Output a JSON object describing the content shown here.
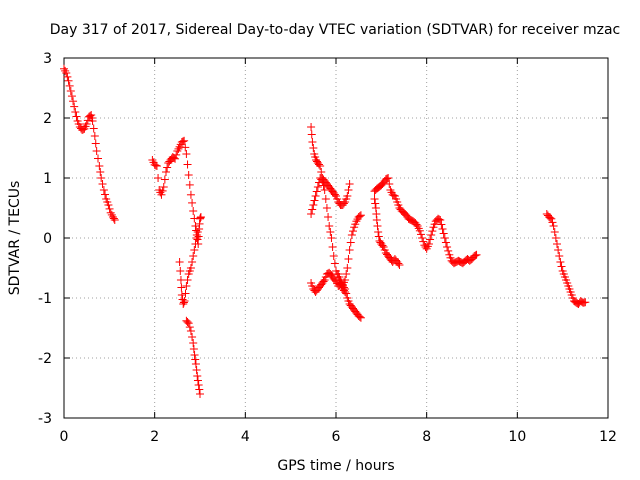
{
  "chart_data": {
    "type": "scatter",
    "title": "Day 317 of 2017, Sidereal Day-to-day VTEC variation (SDTVAR) for receiver mzac",
    "xlabel": "GPS time / hours",
    "ylabel": "SDTVAR / TECUs",
    "xlim": [
      0,
      12
    ],
    "ylim": [
      -3,
      3
    ],
    "xticks": [
      0,
      2,
      4,
      6,
      8,
      10,
      12
    ],
    "yticks": [
      -3,
      -2,
      -1,
      0,
      1,
      2,
      3
    ],
    "xtick_labels": [
      "0",
      "2",
      "4",
      "6",
      "8",
      "10",
      "12"
    ],
    "ytick_labels": [
      "-3",
      "-2",
      "-1",
      "0",
      "1",
      "2",
      "3"
    ],
    "grid": true,
    "marker": "plus",
    "series_color": "#ff0000",
    "segments": [
      [
        [
          0.0,
          2.82
        ],
        [
          0.05,
          2.75
        ],
        [
          0.1,
          2.62
        ],
        [
          0.15,
          2.45
        ],
        [
          0.2,
          2.28
        ],
        [
          0.25,
          2.1
        ],
        [
          0.3,
          1.95
        ],
        [
          0.35,
          1.85
        ],
        [
          0.4,
          1.8
        ],
        [
          0.45,
          1.82
        ],
        [
          0.5,
          1.9
        ],
        [
          0.55,
          2.02
        ],
        [
          0.6,
          2.05
        ],
        [
          0.63,
          1.95
        ],
        [
          0.68,
          1.7
        ],
        [
          0.72,
          1.45
        ],
        [
          0.78,
          1.2
        ],
        [
          0.82,
          1.0
        ],
        [
          0.88,
          0.8
        ],
        [
          0.93,
          0.65
        ],
        [
          0.98,
          0.55
        ],
        [
          1.03,
          0.42
        ],
        [
          1.08,
          0.35
        ],
        [
          1.12,
          0.3
        ]
      ],
      [
        [
          1.95,
          1.3
        ],
        [
          2.0,
          1.22
        ],
        [
          2.05,
          1.2
        ],
        [
          2.1,
          0.8
        ],
        [
          2.15,
          0.72
        ],
        [
          2.2,
          0.85
        ],
        [
          2.25,
          1.1
        ],
        [
          2.3,
          1.25
        ],
        [
          2.35,
          1.3
        ],
        [
          2.4,
          1.35
        ],
        [
          2.45,
          1.32
        ],
        [
          2.5,
          1.45
        ],
        [
          2.55,
          1.52
        ],
        [
          2.6,
          1.6
        ],
        [
          2.65,
          1.62
        ],
        [
          2.7,
          1.4
        ],
        [
          2.75,
          1.05
        ],
        [
          2.8,
          0.72
        ],
        [
          2.85,
          0.45
        ],
        [
          2.9,
          0.2
        ],
        [
          2.93,
          0.05
        ],
        [
          2.96,
          -0.1
        ],
        [
          2.98,
          0.15
        ],
        [
          3.0,
          0.32
        ],
        [
          3.02,
          0.35
        ]
      ],
      [
        [
          2.55,
          -0.4
        ],
        [
          2.58,
          -0.7
        ],
        [
          2.6,
          -0.95
        ],
        [
          2.63,
          -1.1
        ],
        [
          2.66,
          -1.05
        ],
        [
          2.7,
          -0.8
        ],
        [
          2.75,
          -0.6
        ],
        [
          2.8,
          -0.5
        ],
        [
          2.85,
          -0.3
        ],
        [
          2.9,
          -0.1
        ],
        [
          2.95,
          0.1
        ]
      ],
      [
        [
          2.7,
          -1.38
        ],
        [
          2.75,
          -1.42
        ],
        [
          2.8,
          -1.55
        ],
        [
          2.85,
          -1.75
        ],
        [
          2.88,
          -1.95
        ],
        [
          2.91,
          -2.1
        ],
        [
          2.94,
          -2.3
        ],
        [
          2.97,
          -2.45
        ],
        [
          3.0,
          -2.6
        ]
      ],
      [
        [
          5.45,
          1.85
        ],
        [
          5.48,
          1.6
        ],
        [
          5.52,
          1.4
        ],
        [
          5.56,
          1.3
        ],
        [
          5.6,
          1.25
        ],
        [
          5.65,
          1.2
        ],
        [
          5.7,
          1.0
        ],
        [
          5.75,
          0.95
        ],
        [
          5.8,
          0.9
        ],
        [
          5.85,
          0.85
        ],
        [
          5.9,
          0.8
        ],
        [
          5.95,
          0.75
        ],
        [
          6.0,
          0.7
        ],
        [
          6.05,
          0.6
        ],
        [
          6.1,
          0.55
        ],
        [
          6.15,
          0.55
        ],
        [
          6.2,
          0.6
        ],
        [
          6.25,
          0.7
        ],
        [
          6.3,
          0.9
        ]
      ],
      [
        [
          5.45,
          0.4
        ],
        [
          5.5,
          0.55
        ],
        [
          5.55,
          0.7
        ],
        [
          5.6,
          0.85
        ],
        [
          5.65,
          1.0
        ],
        [
          5.7,
          0.95
        ],
        [
          5.75,
          0.8
        ],
        [
          5.8,
          0.5
        ],
        [
          5.85,
          0.2
        ],
        [
          5.9,
          0.0
        ],
        [
          5.95,
          -0.3
        ],
        [
          6.0,
          -0.55
        ],
        [
          6.05,
          -0.65
        ],
        [
          6.1,
          -0.75
        ],
        [
          6.15,
          -0.8
        ]
      ],
      [
        [
          5.45,
          -0.75
        ],
        [
          5.5,
          -0.85
        ],
        [
          5.55,
          -0.9
        ],
        [
          5.6,
          -0.85
        ],
        [
          5.65,
          -0.8
        ],
        [
          5.7,
          -0.75
        ],
        [
          5.75,
          -0.7
        ],
        [
          5.8,
          -0.6
        ],
        [
          5.85,
          -0.58
        ],
        [
          5.9,
          -0.62
        ],
        [
          5.95,
          -0.68
        ],
        [
          6.0,
          -0.72
        ],
        [
          6.05,
          -0.8
        ],
        [
          6.1,
          -0.75
        ],
        [
          6.15,
          -0.85
        ],
        [
          6.2,
          -0.9
        ]
      ],
      [
        [
          6.05,
          -0.6
        ],
        [
          6.1,
          -0.7
        ],
        [
          6.15,
          -0.78
        ],
        [
          6.2,
          -0.7
        ],
        [
          6.25,
          -0.5
        ],
        [
          6.3,
          -0.2
        ],
        [
          6.35,
          0.05
        ],
        [
          6.4,
          0.18
        ],
        [
          6.45,
          0.28
        ],
        [
          6.5,
          0.35
        ],
        [
          6.55,
          0.38
        ]
      ],
      [
        [
          6.1,
          -0.75
        ],
        [
          6.15,
          -0.8
        ],
        [
          6.2,
          -0.85
        ],
        [
          6.25,
          -1.0
        ],
        [
          6.3,
          -1.1
        ],
        [
          6.35,
          -1.15
        ],
        [
          6.4,
          -1.2
        ],
        [
          6.45,
          -1.25
        ],
        [
          6.5,
          -1.3
        ],
        [
          6.55,
          -1.33
        ]
      ],
      [
        [
          6.85,
          0.65
        ],
        [
          6.88,
          0.5
        ],
        [
          6.9,
          0.3
        ],
        [
          6.93,
          0.1
        ],
        [
          6.96,
          -0.05
        ],
        [
          7.0,
          -0.1
        ],
        [
          7.05,
          -0.15
        ],
        [
          7.1,
          -0.25
        ],
        [
          7.15,
          -0.3
        ],
        [
          7.2,
          -0.35
        ],
        [
          7.25,
          -0.4
        ],
        [
          7.3,
          -0.35
        ],
        [
          7.35,
          -0.4
        ],
        [
          7.4,
          -0.45
        ]
      ],
      [
        [
          6.85,
          0.78
        ],
        [
          6.9,
          0.82
        ],
        [
          6.95,
          0.85
        ],
        [
          7.0,
          0.88
        ],
        [
          7.05,
          0.92
        ],
        [
          7.1,
          0.98
        ],
        [
          7.15,
          1.0
        ],
        [
          7.2,
          0.8
        ],
        [
          7.25,
          0.72
        ],
        [
          7.3,
          0.7
        ],
        [
          7.35,
          0.6
        ],
        [
          7.4,
          0.5
        ],
        [
          7.45,
          0.45
        ],
        [
          7.5,
          0.42
        ],
        [
          7.55,
          0.38
        ],
        [
          7.6,
          0.32
        ],
        [
          7.65,
          0.3
        ],
        [
          7.7,
          0.28
        ],
        [
          7.75,
          0.25
        ],
        [
          7.8,
          0.2
        ],
        [
          7.85,
          0.12
        ],
        [
          7.9,
          0.0
        ],
        [
          7.95,
          -0.12
        ],
        [
          8.0,
          -0.18
        ],
        [
          8.05,
          -0.1
        ],
        [
          8.1,
          0.05
        ],
        [
          8.15,
          0.18
        ],
        [
          8.2,
          0.28
        ],
        [
          8.25,
          0.32
        ],
        [
          8.3,
          0.3
        ],
        [
          8.35,
          0.15
        ],
        [
          8.4,
          0.0
        ],
        [
          8.45,
          -0.15
        ],
        [
          8.5,
          -0.28
        ],
        [
          8.55,
          -0.38
        ],
        [
          8.6,
          -0.42
        ],
        [
          8.65,
          -0.4
        ],
        [
          8.7,
          -0.38
        ],
        [
          8.75,
          -0.4
        ],
        [
          8.8,
          -0.42
        ],
        [
          8.85,
          -0.38
        ],
        [
          8.9,
          -0.35
        ],
        [
          8.95,
          -0.38
        ],
        [
          9.0,
          -0.35
        ],
        [
          9.05,
          -0.3
        ],
        [
          9.1,
          -0.28
        ]
      ],
      [
        [
          10.65,
          0.4
        ],
        [
          10.7,
          0.35
        ],
        [
          10.75,
          0.32
        ],
        [
          10.8,
          0.2
        ],
        [
          10.85,
          0.0
        ],
        [
          10.9,
          -0.2
        ],
        [
          10.95,
          -0.4
        ],
        [
          11.0,
          -0.55
        ],
        [
          11.05,
          -0.65
        ],
        [
          11.1,
          -0.75
        ],
        [
          11.15,
          -0.85
        ],
        [
          11.2,
          -0.95
        ],
        [
          11.25,
          -1.05
        ],
        [
          11.3,
          -1.08
        ],
        [
          11.35,
          -1.1
        ],
        [
          11.4,
          -1.05
        ],
        [
          11.45,
          -1.08
        ],
        [
          11.5,
          -1.07
        ]
      ]
    ]
  }
}
